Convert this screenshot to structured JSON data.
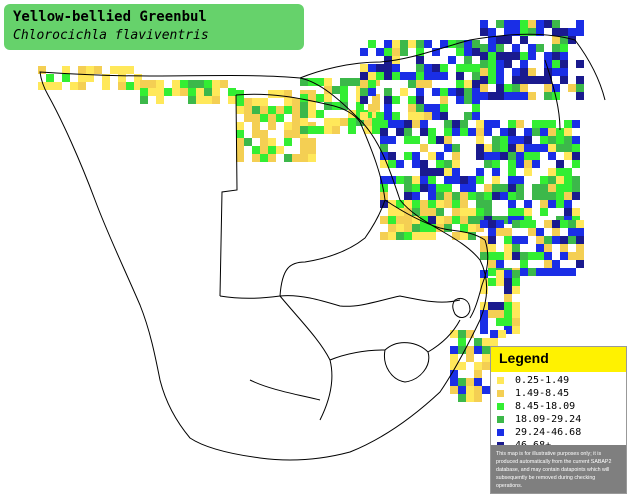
{
  "title": {
    "common_name": "Yellow-bellied Greenbul",
    "scientific_name": "Chlorocichla flaviventris"
  },
  "legend": {
    "title": "Legend",
    "accent_color": "#fff200",
    "items": [
      {
        "label": "0.25-1.49",
        "color": "#ffe85a"
      },
      {
        "label": "1.49-8.45",
        "color": "#f4cf53"
      },
      {
        "label": "8.45-18.09",
        "color": "#33ee33"
      },
      {
        "label": "18.09-29.24",
        "color": "#3cb84a"
      },
      {
        "label": "29.24-46.68",
        "color": "#1a2ee6"
      },
      {
        "label": "46.68+",
        "color": "#1a1a8e"
      }
    ],
    "disclaimer": "This map is for illustrative purposes only; it is produced automatically from the current SABAP2 database, and may contain datapoints which will subsequently be removed during checking operations."
  },
  "map": {
    "land_color": "#ffffff",
    "border_color": "#000000",
    "grid_color": "#d8d8d8"
  }
}
